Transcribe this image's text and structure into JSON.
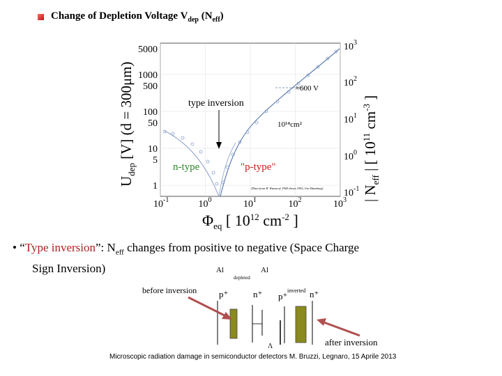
{
  "title": {
    "prefix": "Change of Depletion Voltage V",
    "sub1": "dep",
    "mid": " (N",
    "sub2": "eff",
    "suffix": ")"
  },
  "chart_data": {
    "type": "scatter",
    "xlabel": "Φeq [ 10^12 cm^-2 ]",
    "ylabel_left": "Udep [V] (d = 300μm)",
    "ylabel_right": "| Neff | [ 10^11 cm^-3 ]",
    "x_scale": "log",
    "y_scale": "log",
    "x_ticks": [
      "10-1",
      "100",
      "101",
      "102",
      "103"
    ],
    "y_left_ticks": [
      "5000",
      "1000",
      "500",
      "100",
      "50",
      "10",
      "5",
      "1"
    ],
    "y_right_ticks": [
      "103",
      "102",
      "101",
      "100",
      "10-1"
    ],
    "xlim": [
      0.1,
      1000
    ],
    "ylim": [
      0.5,
      7000
    ],
    "annotations": {
      "type_inversion": "type inversion",
      "n_type": "n-type",
      "p_type": "\"p-type\"",
      "fluence": "10¹⁴cm²",
      "voltage": "≈600 V",
      "credit": "[Data from R. Wunstorf, PhD thesis 1992, Uni Hamburg]"
    },
    "colors": {
      "n_type": "#2a8a2a",
      "p_type": "#cc1a1a",
      "curve": "#5f7fb0",
      "points": "#8aa0c8"
    }
  },
  "bullet": {
    "mark": "•",
    "open_quote": "“",
    "highlight": "Type inversion",
    "after_highlight": "”: N",
    "sub": "eff",
    "rest": " changes from positive to negative (Space Charge",
    "line2": "Sign Inversion)"
  },
  "diagram": {
    "before_label": "before inversion",
    "after_label": "after inversion",
    "al_left": "Al",
    "al_right": "Al",
    "depleted": "depleted",
    "inverted": "inverted",
    "p_left": "p⁺",
    "n_left": "n⁺",
    "p_right": "p⁺",
    "n_right": "n⁺",
    "colors": {
      "olive": "#8a8a1e",
      "arrow": "#b05050"
    }
  },
  "footer": "Microscopic radiation damage in semiconductor detectors M. Bruzzi, Legnaro, 15 Aprile 2013"
}
